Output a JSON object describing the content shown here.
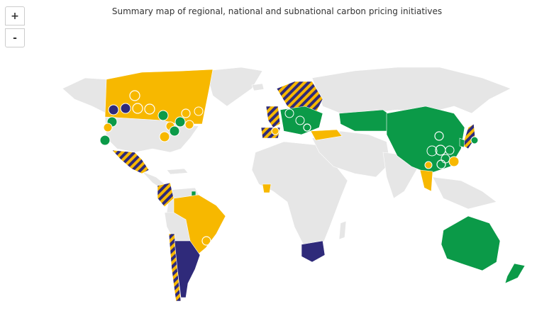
{
  "title": "Summary map of regional, national and subnational carbon pricing initiatives",
  "zoom_controls": {
    "zoom_in": "+",
    "zoom_out": "-"
  }
}
